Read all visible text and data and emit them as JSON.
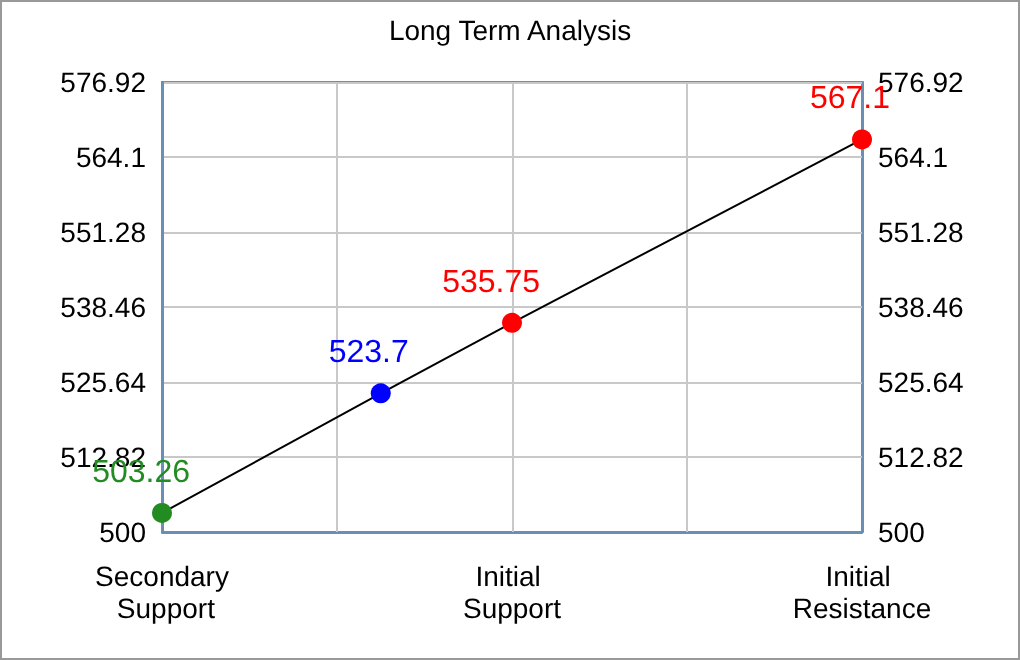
{
  "chart_data": {
    "type": "line",
    "title": "Long Term Analysis",
    "categories": [
      "Secondary Support",
      null,
      null,
      null,
      null,
      null,
      null,
      null,
      "Initial Support",
      null,
      null,
      null,
      null,
      null,
      null,
      null,
      "Initial Resistance"
    ],
    "series": [
      {
        "color": "#000000",
        "values": [
          503.26,
          null,
          null,
          null,
          null,
          523.7,
          null,
          null,
          535.75,
          null,
          null,
          null,
          null,
          null,
          null,
          null,
          567.1
        ],
        "colors": [
          "#228b22",
          null,
          null,
          null,
          null,
          "#0000ff",
          null,
          null,
          "#ff0000",
          null,
          null,
          null,
          null,
          null,
          null,
          null,
          "#ff0000"
        ]
      }
    ],
    "ylim": [
      500,
      576.92
    ],
    "yticks": [
      500,
      512.82,
      525.64,
      538.46,
      551.28,
      564.1,
      576.92
    ],
    "y2lim": [
      500,
      576.92
    ],
    "y2ticks": [
      500,
      512.82,
      525.64,
      538.46,
      551.28,
      564.1,
      576.92
    ],
    "grid": true,
    "marker": "circle",
    "line_style": "solid",
    "data_labels": true
  }
}
